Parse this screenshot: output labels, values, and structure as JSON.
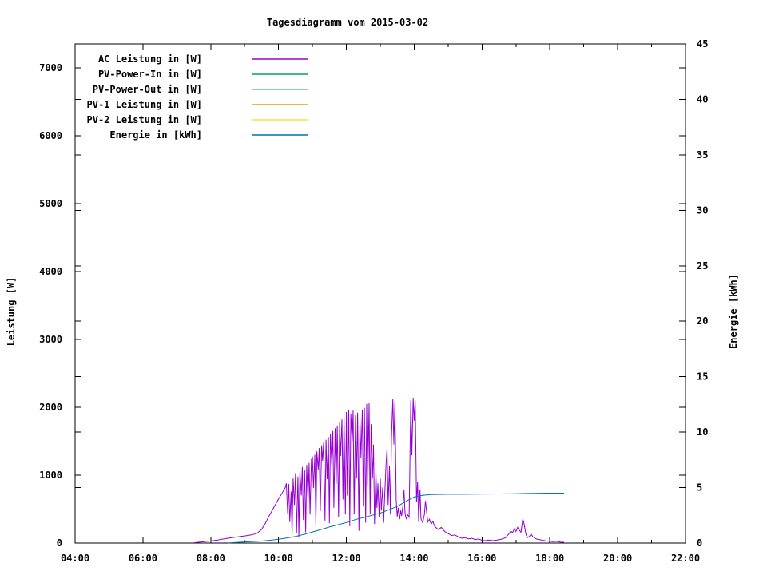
{
  "title": "Tagesdiagramm vom 2015-03-02",
  "chart_data": {
    "type": "line",
    "title": "Tagesdiagramm vom 2015-03-02",
    "x_axis": {
      "range_hours": [
        4,
        22
      ],
      "major_tick_every_hours": 2,
      "minor_tick_every_hours": 1,
      "tick_labels": [
        "04:00",
        "06:00",
        "08:00",
        "10:00",
        "12:00",
        "14:00",
        "16:00",
        "18:00",
        "20:00",
        "22:00"
      ]
    },
    "y_axis_left": {
      "label": "Leistung [W]",
      "range": [
        0,
        7350
      ],
      "tick_step": 1000,
      "tick_labels": [
        "0",
        "1000",
        "2000",
        "3000",
        "4000",
        "5000",
        "6000",
        "7000"
      ]
    },
    "y_axis_right": {
      "label": "Energie [kWh]",
      "range": [
        0,
        45
      ],
      "tick_step": 5,
      "tick_labels": [
        "0",
        "5",
        "10",
        "15",
        "20",
        "25",
        "30",
        "35",
        "40",
        "45"
      ]
    },
    "legend": [
      {
        "label": "AC Leistung in [W]",
        "color": "#9400d3"
      },
      {
        "label": "PV-Power-In in [W]",
        "color": "#009e73"
      },
      {
        "label": "PV-Power-Out in [W]",
        "color": "#56b4e9"
      },
      {
        "label": "PV-1 Leistung in [W]",
        "color": "#e69f00"
      },
      {
        "label": "PV-2 Leistung in [W]",
        "color": "#f0e442"
      },
      {
        "label": "Energie in [kWh]",
        "color": "#0072b2"
      }
    ],
    "series": [
      {
        "name": "AC Leistung in [W]",
        "axis": "left",
        "unit": "W",
        "color": "#9400d3",
        "points": [
          [
            7.5,
            5
          ],
          [
            7.6,
            10
          ],
          [
            7.8,
            20
          ],
          [
            8.0,
            30
          ],
          [
            8.2,
            45
          ],
          [
            8.5,
            70
          ],
          [
            8.8,
            90
          ],
          [
            9.0,
            105
          ],
          [
            9.2,
            120
          ],
          [
            9.35,
            140
          ],
          [
            9.5,
            200
          ],
          [
            9.6,
            280
          ],
          [
            9.7,
            380
          ],
          [
            9.8,
            470
          ],
          [
            9.9,
            560
          ],
          [
            10.0,
            650
          ],
          [
            10.1,
            730
          ],
          [
            10.2,
            820
          ],
          [
            10.23,
            880
          ],
          [
            10.27,
            430
          ],
          [
            10.3,
            870
          ],
          [
            10.33,
            310
          ],
          [
            10.37,
            760
          ],
          [
            10.4,
            120
          ],
          [
            10.43,
            950
          ],
          [
            10.47,
            560
          ],
          [
            10.5,
            1030
          ],
          [
            10.53,
            150
          ],
          [
            10.57,
            980
          ],
          [
            10.6,
            90
          ],
          [
            10.63,
            1060
          ],
          [
            10.67,
            700
          ],
          [
            10.7,
            1120
          ],
          [
            10.73,
            340
          ],
          [
            10.77,
            1080
          ],
          [
            10.8,
            160
          ],
          [
            10.83,
            1150
          ],
          [
            10.87,
            620
          ],
          [
            10.9,
            1180
          ],
          [
            10.93,
            420
          ],
          [
            10.97,
            1230
          ],
          [
            11.0,
            1260
          ],
          [
            11.03,
            810
          ],
          [
            11.07,
            1300
          ],
          [
            11.1,
            240
          ],
          [
            11.13,
            1350
          ],
          [
            11.17,
            1080
          ],
          [
            11.2,
            1400
          ],
          [
            11.23,
            470
          ],
          [
            11.27,
            1440
          ],
          [
            11.3,
            1210
          ],
          [
            11.33,
            1480
          ],
          [
            11.37,
            330
          ],
          [
            11.4,
            1520
          ],
          [
            11.43,
            940
          ],
          [
            11.47,
            1560
          ],
          [
            11.5,
            290
          ],
          [
            11.53,
            1600
          ],
          [
            11.57,
            1150
          ],
          [
            11.6,
            1650
          ],
          [
            11.63,
            520
          ],
          [
            11.67,
            1690
          ],
          [
            11.7,
            870
          ],
          [
            11.73,
            1730
          ],
          [
            11.77,
            380
          ],
          [
            11.8,
            1780
          ],
          [
            11.83,
            1280
          ],
          [
            11.87,
            1820
          ],
          [
            11.9,
            640
          ],
          [
            11.93,
            1870
          ],
          [
            11.97,
            420
          ],
          [
            12.0,
            1930
          ],
          [
            12.03,
            700
          ],
          [
            12.07,
            1960
          ],
          [
            12.1,
            250
          ],
          [
            12.13,
            1900
          ],
          [
            12.17,
            1500
          ],
          [
            12.2,
            1950
          ],
          [
            12.23,
            420
          ],
          [
            12.27,
            1880
          ],
          [
            12.3,
            950
          ],
          [
            12.33,
            1920
          ],
          [
            12.37,
            180
          ],
          [
            12.4,
            1850
          ],
          [
            12.43,
            1250
          ],
          [
            12.47,
            1960
          ],
          [
            12.5,
            540
          ],
          [
            12.53,
            1990
          ],
          [
            12.57,
            300
          ],
          [
            12.6,
            2050
          ],
          [
            12.63,
            840
          ],
          [
            12.67,
            2060
          ],
          [
            12.7,
            420
          ],
          [
            12.73,
            1750
          ],
          [
            12.77,
            950
          ],
          [
            12.8,
            1450
          ],
          [
            12.83,
            280
          ],
          [
            12.87,
            1050
          ],
          [
            12.9,
            520
          ],
          [
            12.93,
            880
          ],
          [
            12.97,
            380
          ],
          [
            13.0,
            950
          ],
          [
            13.03,
            480
          ],
          [
            13.07,
            820
          ],
          [
            13.1,
            300
          ],
          [
            13.13,
            700
          ],
          [
            13.17,
            1150
          ],
          [
            13.2,
            1400
          ],
          [
            13.23,
            560
          ],
          [
            13.27,
            1140
          ],
          [
            13.3,
            420
          ],
          [
            13.33,
            1550
          ],
          [
            13.37,
            2120
          ],
          [
            13.4,
            1450
          ],
          [
            13.43,
            2080
          ],
          [
            13.47,
            640
          ],
          [
            13.5,
            390
          ],
          [
            13.53,
            520
          ],
          [
            13.57,
            350
          ],
          [
            13.6,
            480
          ],
          [
            13.63,
            400
          ],
          [
            13.67,
            560
          ],
          [
            13.7,
            780
          ],
          [
            13.73,
            430
          ],
          [
            13.77,
            350
          ],
          [
            13.8,
            420
          ],
          [
            13.85,
            380
          ],
          [
            13.9,
            2100
          ],
          [
            13.93,
            1290
          ],
          [
            13.97,
            2140
          ],
          [
            14.0,
            1800
          ],
          [
            14.03,
            2100
          ],
          [
            14.07,
            600
          ],
          [
            14.1,
            900
          ],
          [
            14.13,
            310
          ],
          [
            14.17,
            790
          ],
          [
            14.2,
            360
          ],
          [
            14.25,
            300
          ],
          [
            14.3,
            420
          ],
          [
            14.33,
            620
          ],
          [
            14.37,
            450
          ],
          [
            14.4,
            310
          ],
          [
            14.45,
            350
          ],
          [
            14.5,
            280
          ],
          [
            14.55,
            320
          ],
          [
            14.6,
            250
          ],
          [
            14.7,
            200
          ],
          [
            14.8,
            230
          ],
          [
            14.9,
            170
          ],
          [
            15.0,
            140
          ],
          [
            15.1,
            110
          ],
          [
            15.2,
            120
          ],
          [
            15.3,
            90
          ],
          [
            15.4,
            70
          ],
          [
            15.5,
            80
          ],
          [
            15.6,
            60
          ],
          [
            15.7,
            70
          ],
          [
            15.8,
            50
          ],
          [
            15.9,
            60
          ],
          [
            16.0,
            40
          ],
          [
            16.1,
            35
          ],
          [
            16.2,
            45
          ],
          [
            16.3,
            35
          ],
          [
            16.4,
            40
          ],
          [
            16.5,
            50
          ],
          [
            16.6,
            60
          ],
          [
            16.7,
            80
          ],
          [
            16.8,
            140
          ],
          [
            16.85,
            180
          ],
          [
            16.9,
            150
          ],
          [
            16.95,
            210
          ],
          [
            17.0,
            170
          ],
          [
            17.05,
            230
          ],
          [
            17.1,
            190
          ],
          [
            17.15,
            160
          ],
          [
            17.2,
            350
          ],
          [
            17.23,
            310
          ],
          [
            17.27,
            200
          ],
          [
            17.3,
            120
          ],
          [
            17.35,
            80
          ],
          [
            17.4,
            100
          ],
          [
            17.45,
            130
          ],
          [
            17.5,
            90
          ],
          [
            17.6,
            60
          ],
          [
            17.7,
            50
          ],
          [
            17.8,
            40
          ],
          [
            17.9,
            30
          ],
          [
            18.0,
            25
          ],
          [
            18.1,
            20
          ],
          [
            18.2,
            25
          ],
          [
            18.3,
            15
          ],
          [
            18.42,
            10
          ]
        ]
      },
      {
        "name": "Energie in [kWh]",
        "axis": "right",
        "unit": "kWh",
        "color": "#0072b2",
        "points": [
          [
            8.5,
            0.01
          ],
          [
            8.75,
            0.05
          ],
          [
            9.0,
            0.1
          ],
          [
            9.25,
            0.14
          ],
          [
            9.5,
            0.18
          ],
          [
            9.75,
            0.25
          ],
          [
            10.0,
            0.34
          ],
          [
            10.25,
            0.46
          ],
          [
            10.5,
            0.6
          ],
          [
            10.75,
            0.78
          ],
          [
            11.0,
            1.0
          ],
          [
            11.25,
            1.22
          ],
          [
            11.5,
            1.45
          ],
          [
            11.75,
            1.65
          ],
          [
            12.0,
            1.85
          ],
          [
            12.25,
            2.1
          ],
          [
            12.5,
            2.3
          ],
          [
            12.75,
            2.5
          ],
          [
            13.0,
            2.7
          ],
          [
            13.25,
            3.0
          ],
          [
            13.5,
            3.3
          ],
          [
            13.75,
            3.75
          ],
          [
            14.0,
            4.15
          ],
          [
            14.25,
            4.3
          ],
          [
            14.5,
            4.38
          ],
          [
            15.0,
            4.4
          ],
          [
            15.5,
            4.4
          ],
          [
            16.0,
            4.42
          ],
          [
            16.5,
            4.43
          ],
          [
            17.0,
            4.44
          ],
          [
            17.3,
            4.47
          ],
          [
            17.5,
            4.48
          ],
          [
            18.0,
            4.5
          ],
          [
            18.42,
            4.5
          ]
        ]
      }
    ]
  }
}
